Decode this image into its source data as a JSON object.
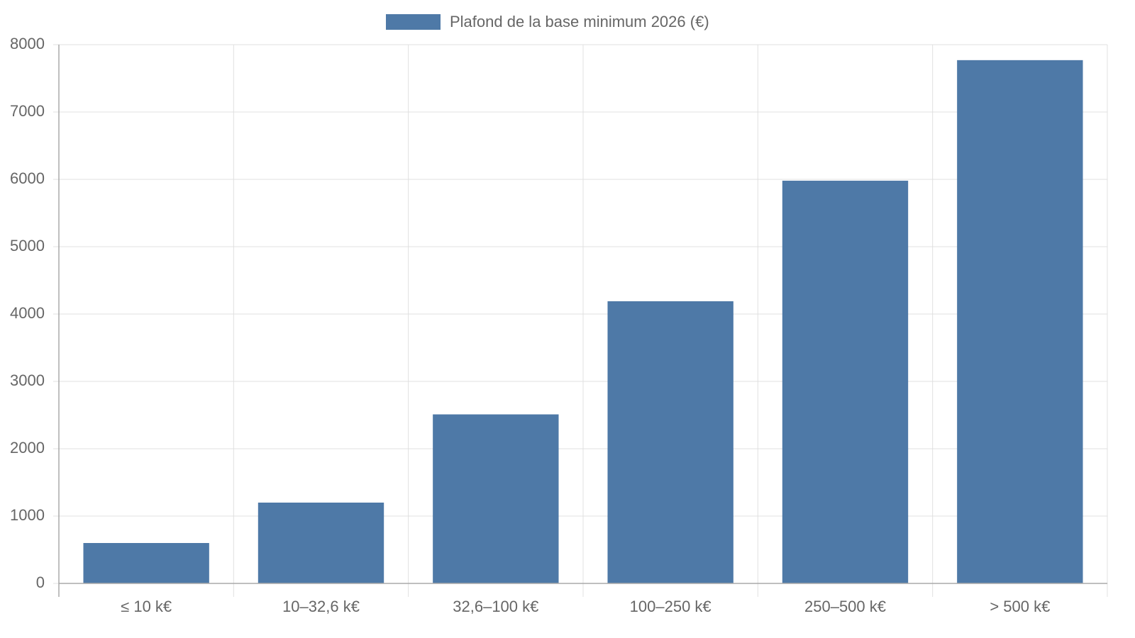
{
  "chart_data": {
    "type": "bar",
    "categories": [
      "≤ 10 k€",
      "10–32,6 k€",
      "32,6–100 k€",
      "100–250 k€",
      "250–500 k€",
      "> 500 k€"
    ],
    "series": [
      {
        "name": "Plafond de la base minimum 2026 (€)",
        "color": "#4e79a7",
        "values": [
          600,
          1200,
          2510,
          4190,
          5980,
          7770
        ]
      }
    ],
    "ylim": [
      0,
      8000
    ],
    "yticks": [
      0,
      1000,
      2000,
      3000,
      4000,
      5000,
      6000,
      7000,
      8000
    ],
    "grid": true,
    "legend": "top"
  }
}
